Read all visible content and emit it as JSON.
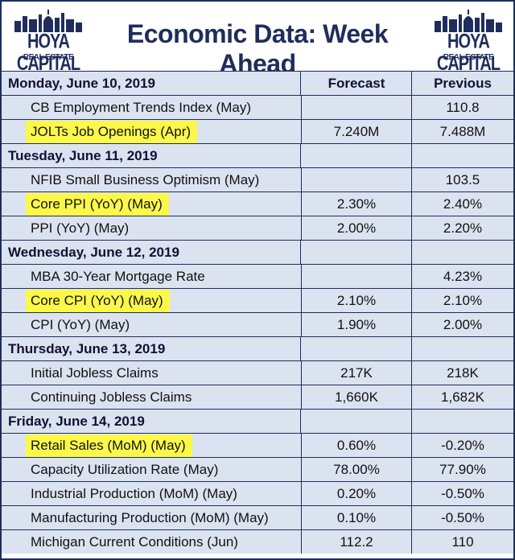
{
  "header": {
    "title": "Economic Data: Week Ahead",
    "logo_brand": "HOYA CAPITAL",
    "logo_sub": "REAL ESTATE"
  },
  "columns": {
    "forecast": "Forecast",
    "previous": "Previous"
  },
  "colors": {
    "navy": "#1f2d5c",
    "row_bg": "#dbe3f1",
    "highlight": "#fbf84a"
  },
  "days": [
    {
      "label": "Monday, June 10, 2019",
      "items": [
        {
          "name": "CB Employment Trends Index (May)",
          "forecast": "",
          "previous": "110.8",
          "highlight": false
        },
        {
          "name": "JOLTs Job Openings (Apr)",
          "forecast": "7.240M",
          "previous": "7.488M",
          "highlight": true
        }
      ]
    },
    {
      "label": "Tuesday, June 11, 2019",
      "items": [
        {
          "name": "NFIB Small Business Optimism (May)",
          "forecast": "",
          "previous": "103.5",
          "highlight": false
        },
        {
          "name": "Core PPI (YoY) (May)",
          "forecast": "2.30%",
          "previous": "2.40%",
          "highlight": true
        },
        {
          "name": "PPI (YoY) (May)",
          "forecast": "2.00%",
          "previous": "2.20%",
          "highlight": false
        }
      ]
    },
    {
      "label": "Wednesday, June 12, 2019",
      "items": [
        {
          "name": "MBA 30-Year Mortgage Rate",
          "forecast": "",
          "previous": "4.23%",
          "highlight": false
        },
        {
          "name": "Core CPI (YoY) (May)",
          "forecast": "2.10%",
          "previous": "2.10%",
          "highlight": true
        },
        {
          "name": "CPI (YoY) (May)",
          "forecast": "1.90%",
          "previous": "2.00%",
          "highlight": false
        }
      ]
    },
    {
      "label": "Thursday, June 13, 2019",
      "items": [
        {
          "name": "Initial Jobless Claims",
          "forecast": "217K",
          "previous": "218K",
          "highlight": false
        },
        {
          "name": "Continuing Jobless Claims",
          "forecast": "1,660K",
          "previous": "1,682K",
          "highlight": false
        }
      ]
    },
    {
      "label": "Friday, June 14, 2019",
      "items": [
        {
          "name": "Retail Sales (MoM) (May)",
          "forecast": "0.60%",
          "previous": "-0.20%",
          "highlight": true
        },
        {
          "name": "Capacity Utilization Rate (May)",
          "forecast": "78.00%",
          "previous": "77.90%",
          "highlight": false
        },
        {
          "name": "Industrial Production (MoM) (May)",
          "forecast": "0.20%",
          "previous": "-0.50%",
          "highlight": false
        },
        {
          "name": "Manufacturing Production (MoM) (May)",
          "forecast": "0.10%",
          "previous": "-0.50%",
          "highlight": false
        },
        {
          "name": "Michigan Current Conditions (Jun)",
          "forecast": "112.2",
          "previous": "110",
          "highlight": false
        }
      ]
    }
  ]
}
